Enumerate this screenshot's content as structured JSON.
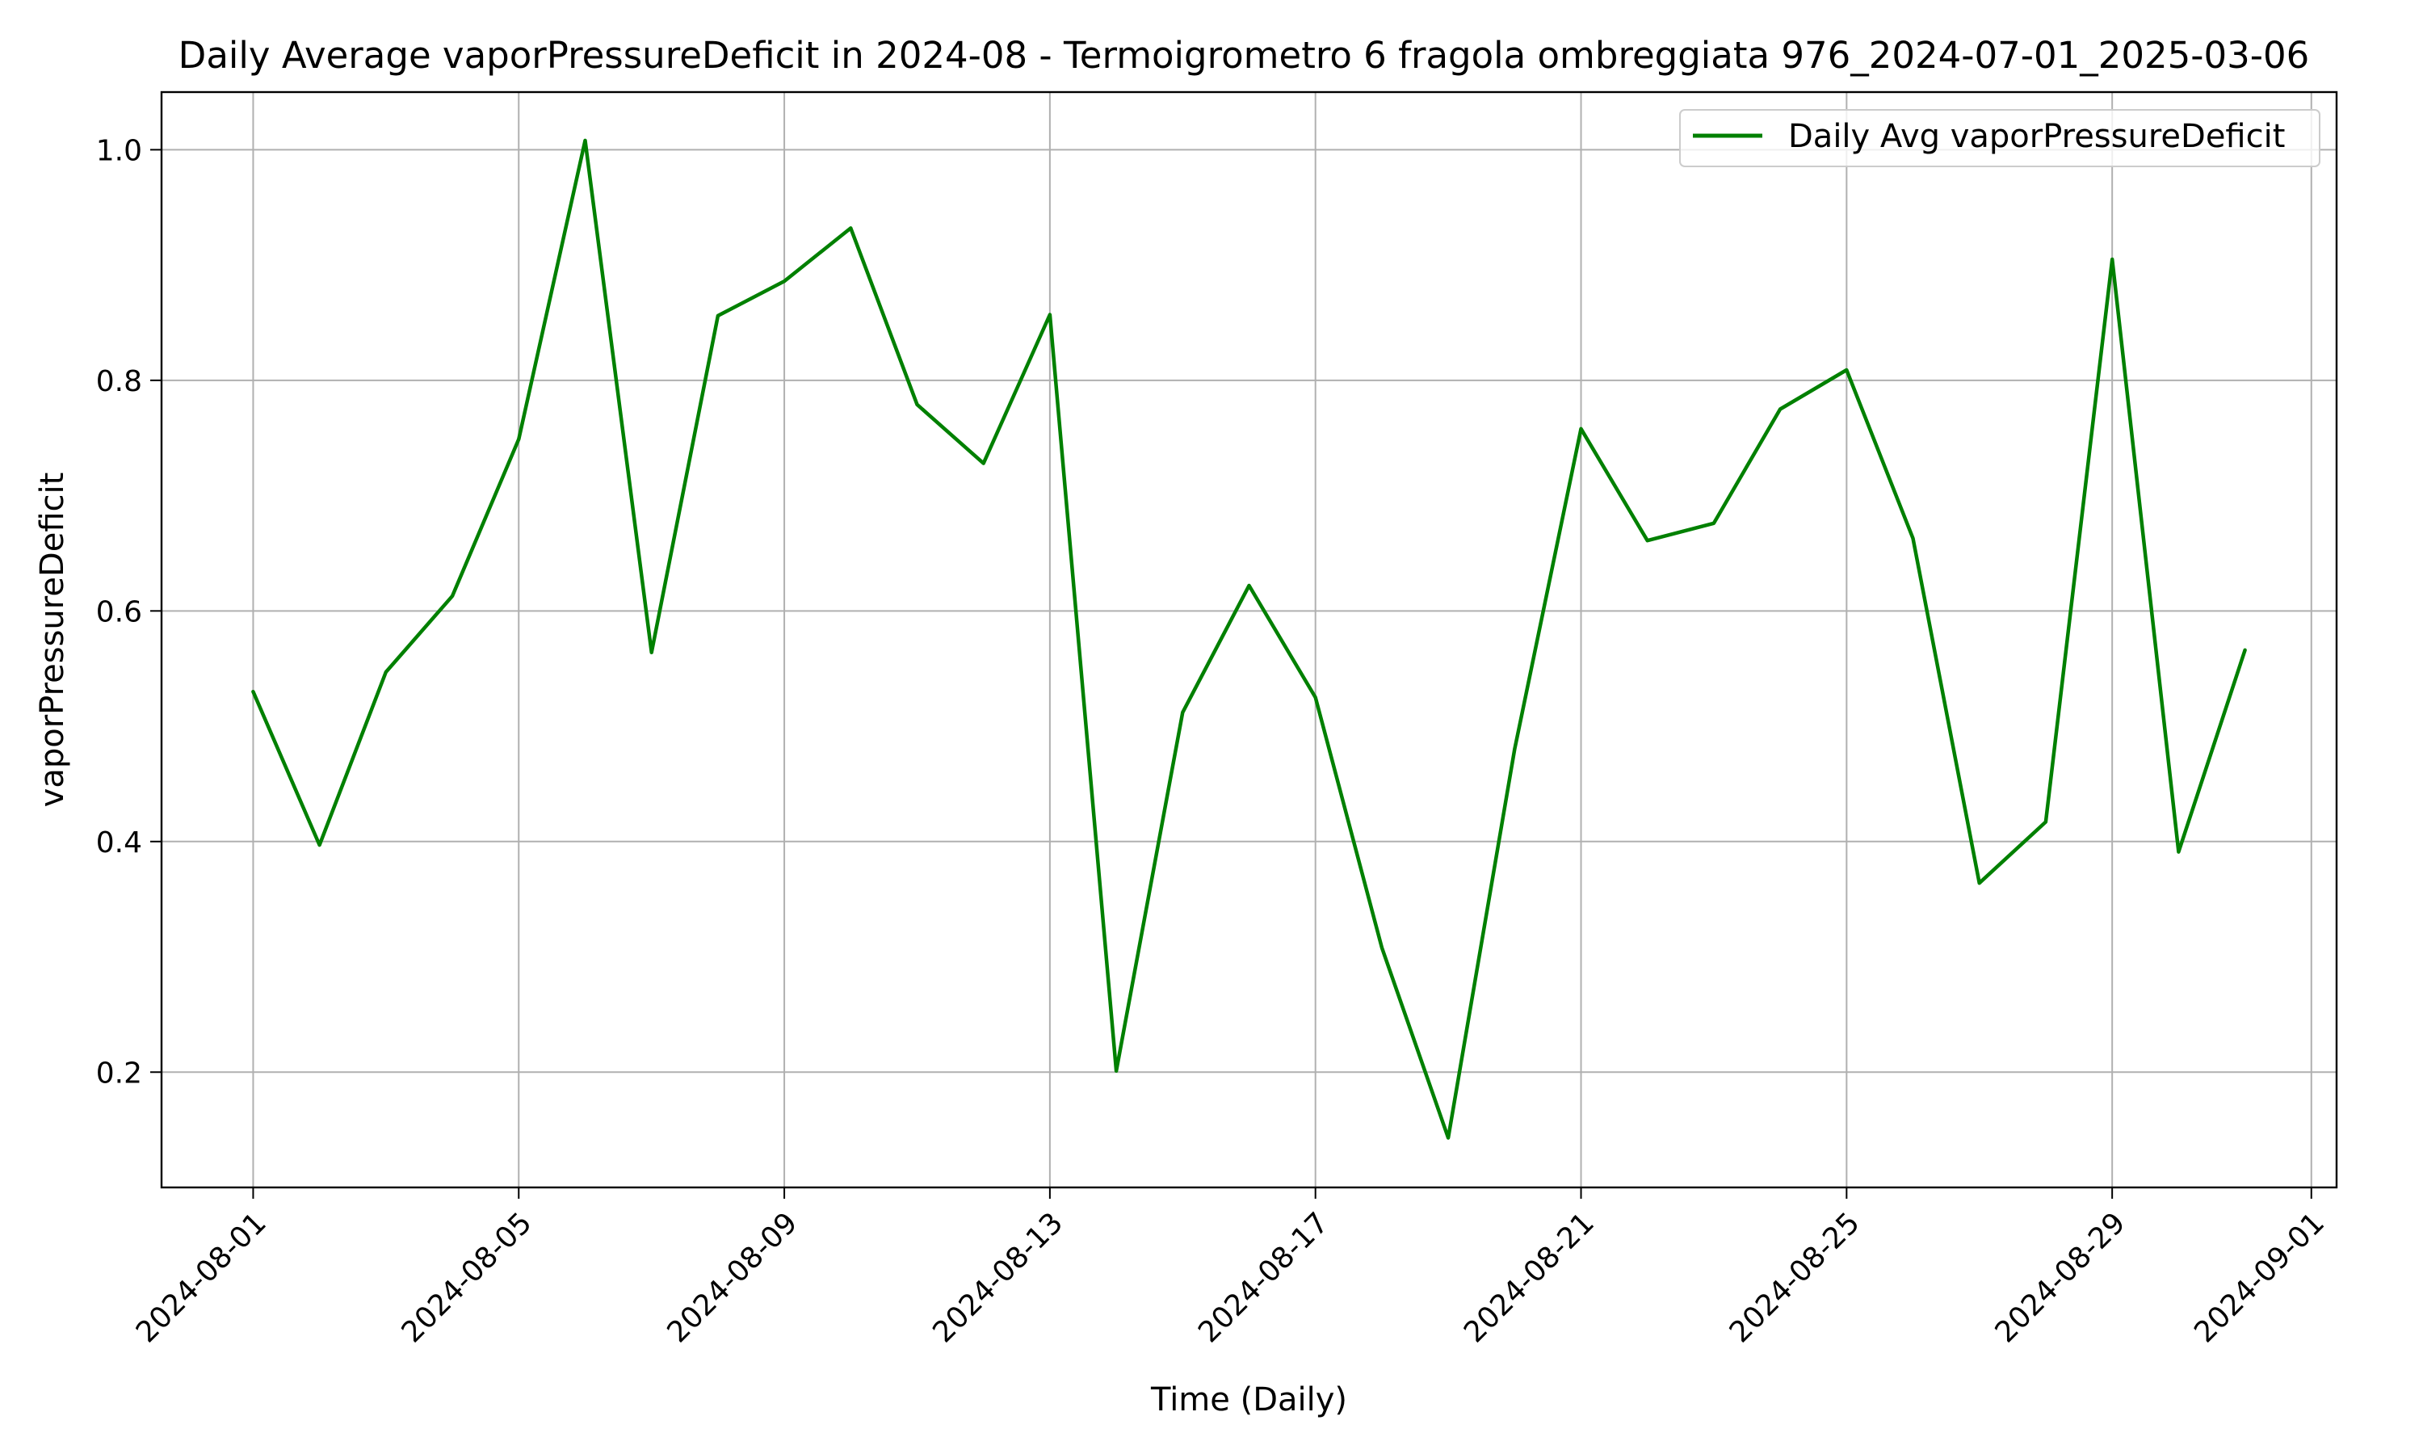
{
  "chart_data": {
    "type": "line",
    "title": "Daily Average vaporPressureDeficit in 2024-08 - Termoigrometro 6 fragola ombreggiata 976_2024-07-01_2025-03-06",
    "xlabel": "Time (Daily)",
    "ylabel": "vaporPressureDeficit",
    "x_tick_labels": [
      "2024-08-01",
      "2024-08-05",
      "2024-08-09",
      "2024-08-13",
      "2024-08-17",
      "2024-08-21",
      "2024-08-25",
      "2024-08-29",
      "2024-09-01"
    ],
    "x_ticks": [
      "2024-08-01",
      "2024-08-05",
      "2024-08-09",
      "2024-08-13",
      "2024-08-17",
      "2024-08-21",
      "2024-08-25",
      "2024-08-29",
      "2024-09-01"
    ],
    "y_ticks": [
      0.2,
      0.4,
      0.6,
      0.8,
      1.0
    ],
    "y_tick_labels": [
      "0.2",
      "0.4",
      "0.6",
      "0.8",
      "1.0"
    ],
    "xlim": [
      "2024-07-30",
      "2024-09-01"
    ],
    "ylim": [
      0.1,
      1.05
    ],
    "grid": true,
    "legend_position": "top-right",
    "series": [
      {
        "name": "Daily Avg vaporPressureDeficit",
        "color": "#008000",
        "x": [
          "2024-08-01",
          "2024-08-02",
          "2024-08-03",
          "2024-08-04",
          "2024-08-05",
          "2024-08-06",
          "2024-08-07",
          "2024-08-08",
          "2024-08-09",
          "2024-08-10",
          "2024-08-11",
          "2024-08-12",
          "2024-08-13",
          "2024-08-14",
          "2024-08-15",
          "2024-08-16",
          "2024-08-17",
          "2024-08-18",
          "2024-08-19",
          "2024-08-20",
          "2024-08-21",
          "2024-08-22",
          "2024-08-23",
          "2024-08-24",
          "2024-08-25",
          "2024-08-26",
          "2024-08-27",
          "2024-08-28",
          "2024-08-29",
          "2024-08-30",
          "2024-08-31"
        ],
        "values": [
          0.53,
          0.397,
          0.547,
          0.613,
          0.749,
          1.008,
          0.564,
          0.856,
          0.886,
          0.932,
          0.779,
          0.728,
          0.857,
          0.201,
          0.512,
          0.622,
          0.525,
          0.308,
          0.143,
          0.48,
          0.758,
          0.661,
          0.676,
          0.775,
          0.809,
          0.663,
          0.364,
          0.417,
          0.905,
          0.391,
          0.566
        ]
      }
    ]
  }
}
